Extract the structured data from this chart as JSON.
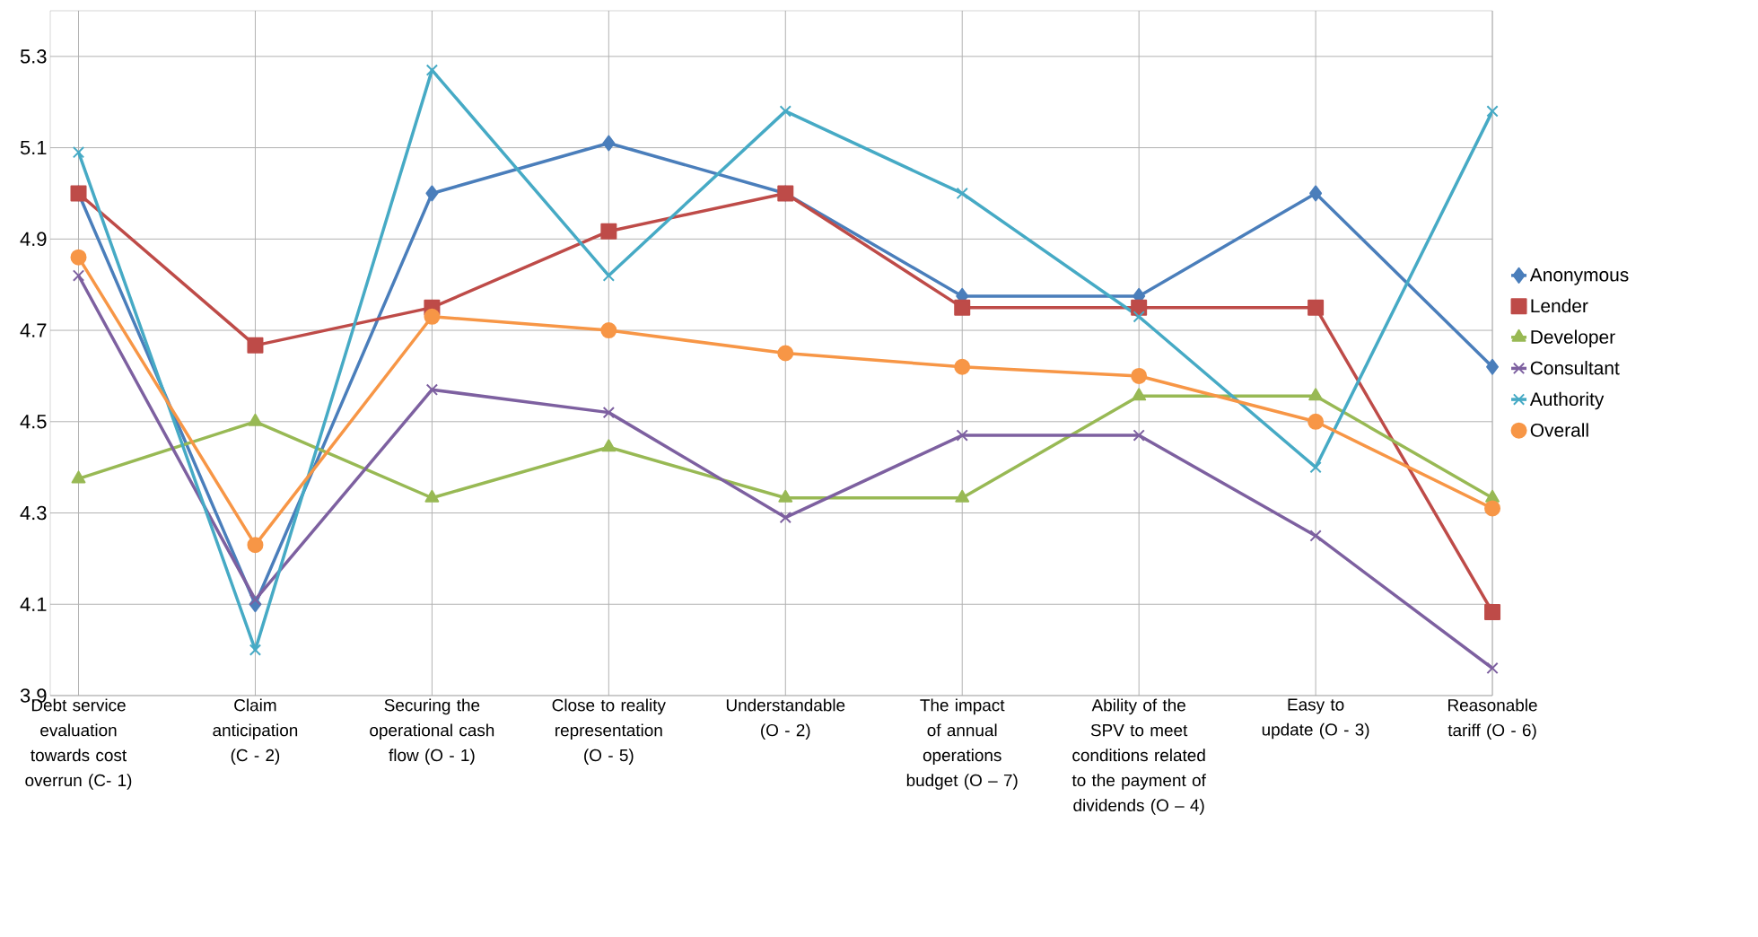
{
  "chart_data": {
    "type": "line",
    "categories": [
      "Debt service evaluation towards cost overrun (C- 1)",
      "Claim anticipation (C - 2)",
      "Securing the operational cash flow (O - 1)",
      "Close to reality representation (O - 5)",
      "Understandable (O - 2)",
      "The impact of annual operations budget (O – 7)",
      "Ability of the SPV to meet conditions related to the payment of dividends (O – 4)",
      "Easy to update (O - 3)",
      "Reasonable tariff (O - 6)"
    ],
    "series": [
      {
        "name": "Anonymous",
        "color": "#4a7ebb",
        "marker": "diamond",
        "values": [
          5.0,
          4.1,
          5.0,
          5.11,
          5.0,
          4.775,
          4.775,
          5.0,
          4.62
        ]
      },
      {
        "name": "Lender",
        "color": "#be4b48",
        "marker": "square",
        "values": [
          5.0,
          4.667,
          4.75,
          4.917,
          5.0,
          4.75,
          4.75,
          4.75,
          4.083
        ]
      },
      {
        "name": "Developer",
        "color": "#98b954",
        "marker": "triangle",
        "values": [
          4.375,
          4.5,
          4.333,
          4.444,
          4.333,
          4.333,
          4.556,
          4.556,
          4.333
        ]
      },
      {
        "name": "Consultant",
        "color": "#7d60a0",
        "marker": "cross",
        "values": [
          4.82,
          4.11,
          4.57,
          4.52,
          4.29,
          4.47,
          4.47,
          4.25,
          3.96
        ]
      },
      {
        "name": "Authority",
        "color": "#46aac5",
        "marker": "cross",
        "values": [
          5.09,
          4.0,
          5.27,
          4.82,
          5.18,
          5.0,
          4.73,
          4.4,
          5.18
        ]
      },
      {
        "name": "Overall",
        "color": "#f79646",
        "marker": "circle",
        "values": [
          4.86,
          4.23,
          4.73,
          4.7,
          4.65,
          4.62,
          4.6,
          4.5,
          4.31
        ]
      }
    ],
    "ylim": [
      3.9,
      5.4
    ],
    "yticks": [
      3.9,
      4.1,
      4.3,
      4.5,
      4.7,
      4.9,
      5.1,
      5.3
    ],
    "grid": true,
    "legend": "right",
    "line_style": "solid"
  }
}
